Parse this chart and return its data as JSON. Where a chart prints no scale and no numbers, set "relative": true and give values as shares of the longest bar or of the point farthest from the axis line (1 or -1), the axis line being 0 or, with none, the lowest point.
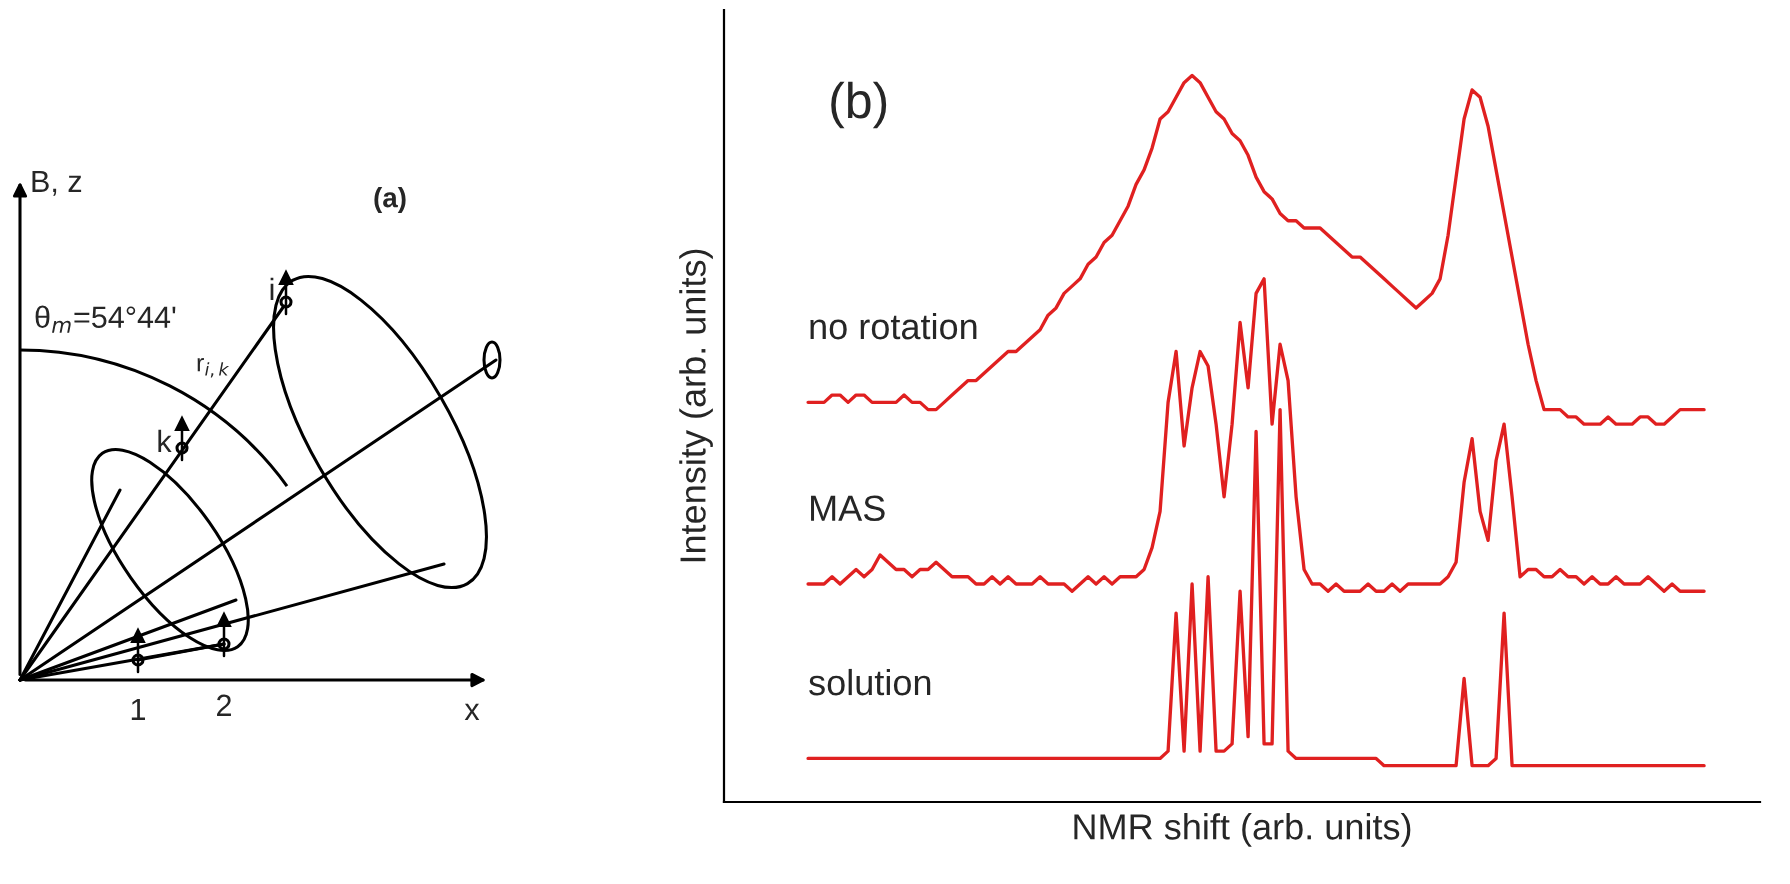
{
  "chart_data": {
    "type": "line",
    "relative": true,
    "xlabel": "NMR shift (arb. units)",
    "ylabel": "Intensity (arb. units)",
    "annotations": [
      "(b)",
      "(a)",
      "B, z",
      "θ$_{m}$=54°44'",
      "r$_{i,k}$",
      "i",
      "k",
      "1",
      "2",
      "x"
    ],
    "categories": [
      null,
      null,
      null,
      null,
      null,
      null,
      null,
      null,
      null,
      null,
      null,
      null,
      null,
      null,
      null,
      null,
      null,
      null,
      null,
      null,
      null,
      null,
      null,
      null,
      null,
      null,
      null,
      null,
      null,
      null,
      null,
      null,
      null,
      null,
      null,
      null,
      null,
      null,
      null,
      null,
      null,
      null,
      null,
      null,
      null,
      null,
      null,
      null,
      null,
      null,
      null,
      null,
      null,
      null,
      null,
      null,
      null,
      null,
      null,
      null,
      null,
      null,
      null,
      null,
      null,
      null,
      null,
      null,
      null,
      null,
      null,
      null,
      null,
      null,
      null,
      null,
      null,
      null,
      null,
      null,
      null,
      null,
      null,
      null,
      null,
      null,
      null,
      null,
      null,
      null,
      null,
      null,
      null,
      null,
      null,
      null,
      null,
      null,
      null,
      null,
      null,
      null,
      null,
      null,
      null,
      null,
      null,
      null,
      null,
      null,
      null,
      null,
      null
    ],
    "series": [
      {
        "name": "no rotation",
        "color": "#e02020",
        "values": [
          0.55,
          0.55,
          0.55,
          0.56,
          0.56,
          0.55,
          0.56,
          0.56,
          0.55,
          0.55,
          0.55,
          0.55,
          0.56,
          0.55,
          0.55,
          0.54,
          0.54,
          0.55,
          0.56,
          0.57,
          0.58,
          0.58,
          0.59,
          0.6,
          0.61,
          0.62,
          0.62,
          0.63,
          0.64,
          0.65,
          0.67,
          0.68,
          0.7,
          0.71,
          0.72,
          0.74,
          0.75,
          0.77,
          0.78,
          0.8,
          0.82,
          0.85,
          0.87,
          0.9,
          0.94,
          0.95,
          0.97,
          0.99,
          1.0,
          0.99,
          0.97,
          0.95,
          0.94,
          0.92,
          0.91,
          0.89,
          0.86,
          0.84,
          0.83,
          0.81,
          0.8,
          0.8,
          0.79,
          0.79,
          0.79,
          0.78,
          0.77,
          0.76,
          0.75,
          0.75,
          0.74,
          0.73,
          0.72,
          0.71,
          0.7,
          0.69,
          0.68,
          0.69,
          0.7,
          0.72,
          0.78,
          0.86,
          0.94,
          0.98,
          0.97,
          0.93,
          0.87,
          0.81,
          0.75,
          0.69,
          0.63,
          0.58,
          0.54,
          0.54,
          0.54,
          0.53,
          0.53,
          0.52,
          0.52,
          0.52,
          0.53,
          0.52,
          0.52,
          0.52,
          0.53,
          0.53,
          0.52,
          0.52,
          0.53,
          0.54,
          0.54,
          0.54,
          0.54
        ]
      },
      {
        "name": "MAS",
        "color": "#e02020",
        "values": [
          0.3,
          0.3,
          0.3,
          0.31,
          0.3,
          0.31,
          0.32,
          0.31,
          0.32,
          0.34,
          0.33,
          0.32,
          0.32,
          0.31,
          0.32,
          0.32,
          0.33,
          0.32,
          0.31,
          0.31,
          0.31,
          0.3,
          0.3,
          0.31,
          0.3,
          0.31,
          0.3,
          0.3,
          0.3,
          0.31,
          0.3,
          0.3,
          0.3,
          0.29,
          0.3,
          0.31,
          0.3,
          0.31,
          0.3,
          0.31,
          0.31,
          0.31,
          0.32,
          0.35,
          0.4,
          0.55,
          0.62,
          0.49,
          0.57,
          0.62,
          0.6,
          0.52,
          0.42,
          0.52,
          0.66,
          0.57,
          0.7,
          0.72,
          0.52,
          0.63,
          0.58,
          0.42,
          0.32,
          0.3,
          0.3,
          0.29,
          0.3,
          0.29,
          0.29,
          0.29,
          0.3,
          0.29,
          0.29,
          0.3,
          0.29,
          0.3,
          0.3,
          0.3,
          0.3,
          0.3,
          0.31,
          0.33,
          0.44,
          0.5,
          0.4,
          0.36,
          0.47,
          0.52,
          0.42,
          0.31,
          0.32,
          0.32,
          0.31,
          0.31,
          0.32,
          0.31,
          0.31,
          0.3,
          0.31,
          0.3,
          0.3,
          0.31,
          0.3,
          0.3,
          0.3,
          0.31,
          0.3,
          0.29,
          0.3,
          0.29,
          0.29,
          0.29,
          0.29
        ]
      },
      {
        "name": "solution",
        "color": "#e02020",
        "values": [
          0.06,
          0.06,
          0.06,
          0.06,
          0.06,
          0.06,
          0.06,
          0.06,
          0.06,
          0.06,
          0.06,
          0.06,
          0.06,
          0.06,
          0.06,
          0.06,
          0.06,
          0.06,
          0.06,
          0.06,
          0.06,
          0.06,
          0.06,
          0.06,
          0.06,
          0.06,
          0.06,
          0.06,
          0.06,
          0.06,
          0.06,
          0.06,
          0.06,
          0.06,
          0.06,
          0.06,
          0.06,
          0.06,
          0.06,
          0.06,
          0.06,
          0.06,
          0.06,
          0.06,
          0.06,
          0.07,
          0.26,
          0.07,
          0.3,
          0.07,
          0.31,
          0.07,
          0.07,
          0.08,
          0.29,
          0.09,
          0.51,
          0.08,
          0.08,
          0.54,
          0.07,
          0.06,
          0.06,
          0.06,
          0.06,
          0.06,
          0.06,
          0.06,
          0.06,
          0.06,
          0.06,
          0.06,
          0.05,
          0.05,
          0.05,
          0.05,
          0.05,
          0.05,
          0.05,
          0.05,
          0.05,
          0.05,
          0.17,
          0.05,
          0.05,
          0.05,
          0.06,
          0.26,
          0.05,
          0.05,
          0.05,
          0.05,
          0.05,
          0.05,
          0.05,
          0.05,
          0.05,
          0.05,
          0.05,
          0.05,
          0.05,
          0.05,
          0.05,
          0.05,
          0.05,
          0.05,
          0.05,
          0.05,
          0.05,
          0.05,
          0.05,
          0.05,
          0.05
        ]
      }
    ]
  }
}
